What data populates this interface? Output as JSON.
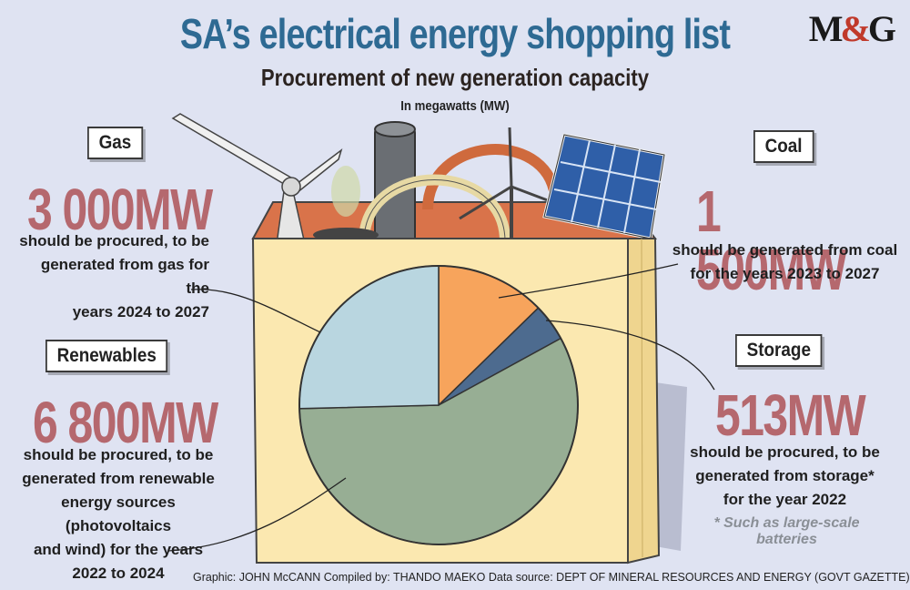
{
  "header": {
    "title": "SA’s electrical energy shopping list",
    "subtitle": "Procurement of new generation capacity",
    "units": "In megawatts (MW)",
    "logo_m": "M",
    "logo_amp": "&",
    "logo_g": "G"
  },
  "callouts": {
    "gas": {
      "label": "Gas",
      "value": "3 000MW",
      "lines": [
        "should be procured, to be",
        "generated from gas for the",
        "years 2024 to 2027"
      ]
    },
    "coal": {
      "label": "Coal",
      "value": "1 500MW",
      "lines": [
        "should be generated from coal",
        "for the years 2023 to 2027"
      ]
    },
    "renewables": {
      "label": "Renewables",
      "value": "6 800MW",
      "lines": [
        "should be procured, to be",
        "generated from renewable",
        "energy sources (photovoltaics",
        "and wind) for the years",
        "2022 to 2024"
      ]
    },
    "storage": {
      "label": "Storage",
      "value": "513MW",
      "lines": [
        "should be procured, to be",
        "generated from storage*",
        "for the year 2022"
      ],
      "note": "* Such as large-scale batteries"
    }
  },
  "credits": "Graphic: JOHN McCANN  Compiled by: THANDO MAEKO  Data source: DEPT OF MINERAL RESOURCES AND ENERGY (GOVT GAZETTE)",
  "chart_data": {
    "type": "pie",
    "unit": "MW",
    "slices": [
      {
        "name": "Coal",
        "value": 1500,
        "color": "#f7a45c"
      },
      {
        "name": "Storage",
        "value": 513,
        "color": "#4d6b8f"
      },
      {
        "name": "Renewables",
        "value": 6800,
        "color": "#97ae94"
      },
      {
        "name": "Gas",
        "value": 3000,
        "color": "#b9d6e0"
      }
    ]
  }
}
